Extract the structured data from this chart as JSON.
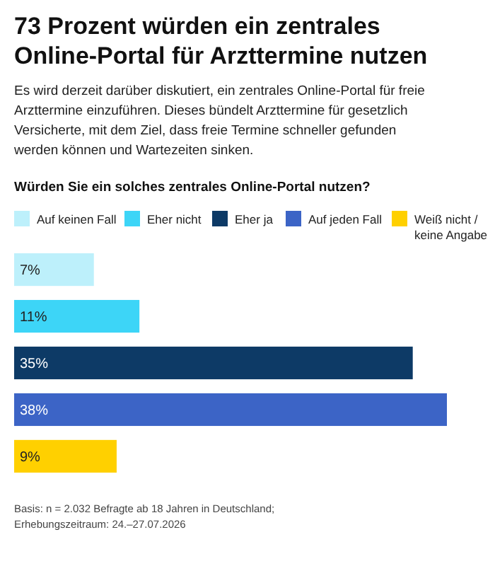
{
  "chart_data": {
    "type": "bar",
    "orientation": "horizontal",
    "stacked": true,
    "title": "73 Prozent würden ein zentrales Online-Portal für Arzttermine nutzen",
    "subtitle": "Es wird derzeit darüber diskutiert, ein zentrales Online-Portal für freie Arzttermine einzuführen. Dieses bündelt Arzttermine für gesetzlich Versicherte, mit dem Ziel, dass freie Termine schneller gefunden werden können und Wartezeiten sinken.",
    "legend_title": "Würden Sie ein solches zentrales Online-Portal nutzen?",
    "categories": [
      null,
      null,
      null,
      null,
      null
    ],
    "series": [
      {
        "name": "Auf keinen Fall",
        "color": "#bdf0fb",
        "values": [
          7,
          null,
          null,
          null,
          null
        ],
        "value_labels": [
          "7%",
          null,
          null,
          null,
          null
        ]
      },
      {
        "name": "Eher nicht",
        "color": "#3dd5f7",
        "values": [
          null,
          11,
          null,
          null,
          null
        ],
        "value_labels": [
          null,
          "11%",
          null,
          null,
          null
        ]
      },
      {
        "name": "Eher ja",
        "color": "#0d3a66",
        "values": [
          null,
          null,
          35,
          null,
          null
        ],
        "value_labels": [
          null,
          null,
          "35%",
          null,
          null
        ]
      },
      {
        "name": "Auf jeden Fall",
        "color": "#3c64c6",
        "values": [
          null,
          null,
          null,
          38,
          null
        ],
        "value_labels": [
          null,
          null,
          null,
          "38%",
          null
        ]
      },
      {
        "name": "Weiß nicht / keine Angabe",
        "color": "#ffd000",
        "values": [
          null,
          null,
          null,
          null,
          9
        ],
        "value_labels": [
          null,
          null,
          null,
          null,
          "9%"
        ]
      }
    ],
    "legend": "top",
    "annotations": [
      "Basis: n = 2.032 Befragte ab 18 Jahren in Deutschland; Erhebungszeitraum: 24.–27.07.2026"
    ]
  }
}
